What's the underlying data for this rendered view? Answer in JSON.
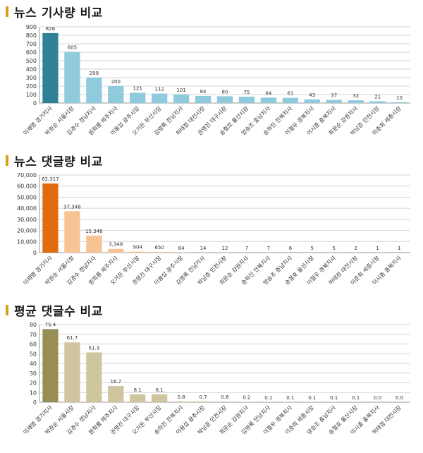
{
  "chart_data": [
    {
      "type": "bar",
      "title": "뉴스 기사량 비교",
      "categories": [
        "이재명 경기지사",
        "박원순 서울시장",
        "김경수 경남지사",
        "원희룡 제주지사",
        "이용섭 광주시장",
        "오거돈 부산시장",
        "김영록 전남지사",
        "허태정 대전시장",
        "권영진 대구시장",
        "송철호 울산시장",
        "양승조 충남지사",
        "송하진 전북지사",
        "이철우 경북지사",
        "이시종 충북지사",
        "최문순 강원지사",
        "박남춘 인천시장",
        "이춘희 세종시장"
      ],
      "values": [
        826,
        605,
        299,
        200,
        121,
        112,
        101,
        84,
        80,
        75,
        64,
        61,
        43,
        37,
        32,
        21,
        10
      ],
      "value_labels": [
        "826",
        "605",
        "299",
        "200",
        "121",
        "112",
        "101",
        "84",
        "80",
        "75",
        "64",
        "61",
        "43",
        "37",
        "32",
        "21",
        "10"
      ],
      "ylim": [
        0,
        900
      ],
      "yticks": [
        "0",
        "100",
        "200",
        "300",
        "400",
        "500",
        "600",
        "700",
        "800",
        "900"
      ],
      "grid": true,
      "colors": {
        "highlight": "#2f8198",
        "normal": "#8fcadd"
      }
    },
    {
      "type": "bar",
      "title": "뉴스 댓글량 비교",
      "categories": [
        "이재명 경기지사",
        "박원순 서울시장",
        "김경수 경남지사",
        "원희룡 제주지사",
        "오거돈 부산시장",
        "권영진 대구시장",
        "이용섭 광주시장",
        "김영록 전남지사",
        "박남춘 인천시장",
        "최문순 강원지사",
        "송하진 전북지사",
        "양승조 충남지사",
        "송철호 울산시장",
        "이철우 경북지사",
        "허태정 대전시장",
        "이춘희 세종시장",
        "이시종 충북지사"
      ],
      "values": [
        62317,
        37348,
        15346,
        3348,
        904,
        650,
        84,
        14,
        12,
        7,
        7,
        6,
        5,
        5,
        2,
        1,
        1
      ],
      "value_labels": [
        "62,317",
        "37,348",
        "15,346",
        "3,348",
        "904",
        "650",
        "84",
        "14",
        "12",
        "7",
        "7",
        "6",
        "5",
        "5",
        "2",
        "1",
        "1"
      ],
      "ylim": [
        0,
        70000
      ],
      "yticks": [
        "0",
        "10,000",
        "20,000",
        "30,000",
        "40,000",
        "50,000",
        "60,000",
        "70,000"
      ],
      "grid": true,
      "colors": {
        "highlight": "#e06c10",
        "normal": "#f8c393"
      }
    },
    {
      "type": "bar",
      "title": "평균 댓글수 비교",
      "categories": [
        "이재명 경기지사",
        "박원순 서울시장",
        "김경수 경남지사",
        "원희룡 제주지사",
        "권영진 대구시장",
        "오거돈 부산시장",
        "송하진 전북지사",
        "이용섭 광주시장",
        "박남춘 인천시장",
        "최문순 강원지사",
        "김영록 전남지사",
        "이철우 경북지사",
        "이춘희 세종시장",
        "양승조 충남지사",
        "송철호 울산시장",
        "이시종 충북지사",
        "허태정 대전시장"
      ],
      "values": [
        75.4,
        61.7,
        51.3,
        16.7,
        8.1,
        8.1,
        0.8,
        0.7,
        0.6,
        0.2,
        0.1,
        0.1,
        0.1,
        0.1,
        0.1,
        0.0,
        0.0
      ],
      "value_labels": [
        "75.4",
        "61.7",
        "51.3",
        "16.7",
        "8.1",
        "8.1",
        "0.8",
        "0.7",
        "0.6",
        "0.2",
        "0.1",
        "0.1",
        "0.1",
        "0.1",
        "0.1",
        "0.0",
        "0.0"
      ],
      "ylim": [
        0,
        80
      ],
      "yticks": [
        "0",
        "10",
        "20",
        "30",
        "40",
        "50",
        "60",
        "70",
        "80"
      ],
      "grid": true,
      "colors": {
        "highlight": "#978e55",
        "normal": "#cfc59e"
      }
    }
  ]
}
